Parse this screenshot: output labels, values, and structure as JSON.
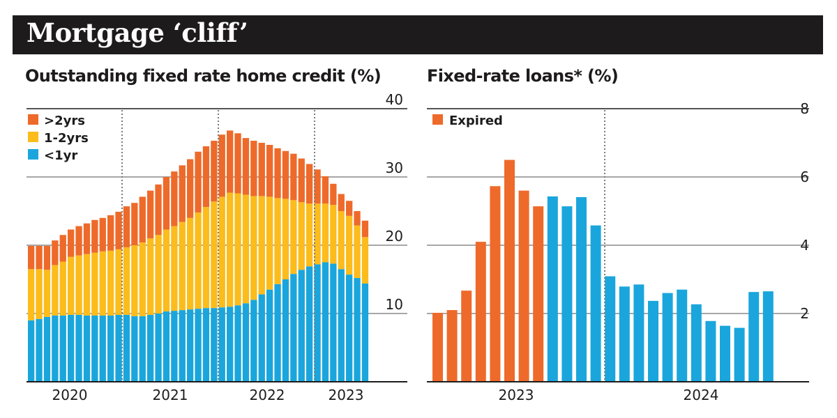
{
  "header": {
    "title": "Mortgage ‘cliff’"
  },
  "colors": {
    "over_2yrs": "#ee6a2a",
    "one_to_2yrs": "#fbbc1c",
    "under_1yr": "#1aa6dc",
    "expired": "#ee6a2a",
    "banner": "#1d1b1c"
  },
  "chart_data": [
    {
      "type": "bar",
      "stacked": true,
      "title": "Outstanding fixed rate home credit (%)",
      "legend_position": "top-left",
      "y_axis_side": "right",
      "ylim": [
        0,
        40
      ],
      "yticks": [
        10,
        20,
        30,
        40
      ],
      "grid": true,
      "x_labels": [
        "2020",
        "2021",
        "2022",
        "2023"
      ],
      "series": [
        {
          "name": "<1yr",
          "color_key": "under_1yr",
          "values": [
            9,
            9.2,
            9.5,
            9.7,
            9.7,
            9.8,
            9.8,
            9.7,
            9.7,
            9.7,
            9.7,
            9.8,
            9.8,
            9.6,
            9.6,
            9.8,
            10,
            10.3,
            10.4,
            10.5,
            10.6,
            10.7,
            10.8,
            10.8,
            10.9,
            11,
            11.2,
            11.5,
            12,
            12.8,
            13.5,
            14.3,
            15,
            15.8,
            16.4,
            16.9,
            17.2,
            17.5,
            17.3,
            16.5,
            15.7,
            15.2,
            14.4
          ]
        },
        {
          "name": "1-2yrs",
          "color_key": "one_to_2yrs",
          "values": [
            7.5,
            7.3,
            6.9,
            7.4,
            7.9,
            8.5,
            8.7,
            9,
            9.2,
            9.4,
            9.5,
            9.6,
            9.9,
            10.4,
            10.8,
            11.2,
            11.5,
            12,
            12.4,
            12.9,
            13.4,
            14.1,
            14.8,
            15.6,
            16.2,
            16.7,
            16.4,
            15.9,
            15.2,
            14.4,
            13.6,
            12.6,
            11.8,
            10.8,
            9.9,
            9.2,
            8.9,
            8.6,
            8.6,
            8.5,
            8.6,
            7.7,
            6.8
          ]
        },
        {
          "name": ">2yrs",
          "color_key": "over_2yrs",
          "values": [
            3.4,
            3.4,
            3.5,
            3.6,
            3.9,
            4,
            4.3,
            4.5,
            4.8,
            4.9,
            5.2,
            5.5,
            6,
            6.2,
            6.7,
            7,
            7.4,
            7.7,
            8,
            8.3,
            8.6,
            8.9,
            8.9,
            8.9,
            9.1,
            9.1,
            8.8,
            8.3,
            8.1,
            7.8,
            7.6,
            7.3,
            7,
            6.8,
            6.4,
            5.8,
            5,
            4,
            3.1,
            2.5,
            2.2,
            2.1,
            2.4
          ]
        }
      ]
    },
    {
      "type": "bar",
      "title": "Fixed-rate loans* (%)",
      "legend_position": "top-left",
      "y_axis_side": "right",
      "ylim": [
        0,
        8
      ],
      "yticks": [
        2,
        4,
        6,
        8
      ],
      "grid": true,
      "x_labels": [
        "2023",
        "2024"
      ],
      "series": [
        {
          "name": "Expired",
          "color_key": "expired",
          "values": [
            2.02,
            2.1,
            2.67,
            4.1,
            5.73,
            6.5,
            5.6,
            5.14
          ]
        },
        {
          "color_key": "under_1yr",
          "values": [
            5.43,
            5.14,
            5.41,
            4.58,
            3.09,
            2.79,
            2.85,
            2.37,
            2.6,
            2.7,
            2.27,
            1.78,
            1.64,
            1.58,
            2.63,
            2.65
          ]
        }
      ]
    }
  ]
}
